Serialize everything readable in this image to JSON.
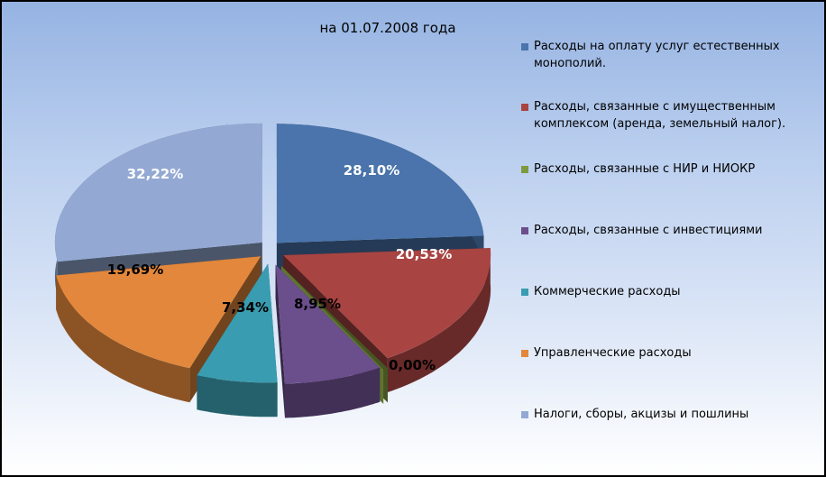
{
  "chart_data": {
    "type": "pie",
    "title": "на 01.07.2008 года",
    "categories": [
      "Расходы на оплату услуг естественных монополий.",
      "Расходы, связанные с имущественным комплексом (аренда, земельный налог).",
      "Расходы, связанные с НИР и НИОКР",
      "Расходы, связанные с инвестициями",
      "Коммерческие расходы",
      "Управленческие расходы",
      "Налоги, сборы, акцизы и пошлины"
    ],
    "values": [
      28.1,
      20.53,
      0.0,
      8.95,
      7.34,
      19.69,
      32.22
    ],
    "data_labels": [
      "28,10%",
      "20,53%",
      "0,00%",
      "8,95%",
      "7,34%",
      "19,69%",
      "32,22%"
    ],
    "colors": [
      "#4a74ab",
      "#a84442",
      "#7f9a3e",
      "#6b4e8c",
      "#3a9cb0",
      "#e2873b",
      "#93a9d3"
    ],
    "exploded": true,
    "three_d": true,
    "legend_position": "right"
  }
}
